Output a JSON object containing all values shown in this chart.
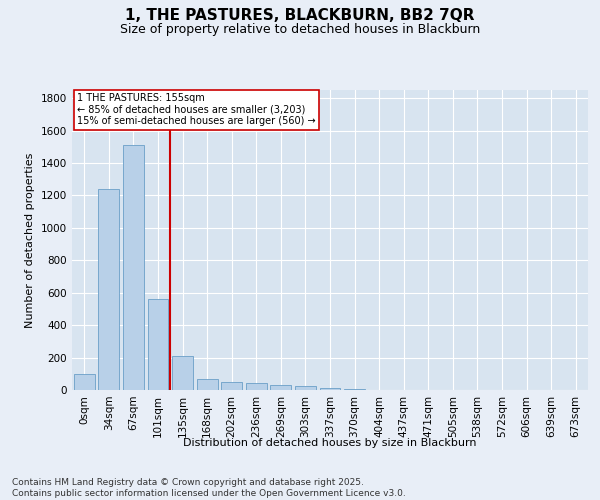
{
  "title": "1, THE PASTURES, BLACKBURN, BB2 7QR",
  "subtitle": "Size of property relative to detached houses in Blackburn",
  "xlabel": "Distribution of detached houses by size in Blackburn",
  "ylabel": "Number of detached properties",
  "bar_color": "#b8d0e8",
  "bar_edge_color": "#6a9fc8",
  "vline_color": "#cc0000",
  "vline_x_index": 4,
  "annotation_text": "1 THE PASTURES: 155sqm\n← 85% of detached houses are smaller (3,203)\n15% of semi-detached houses are larger (560) →",
  "annotation_box_color": "#cc0000",
  "categories": [
    "0sqm",
    "34sqm",
    "67sqm",
    "101sqm",
    "135sqm",
    "168sqm",
    "202sqm",
    "236sqm",
    "269sqm",
    "303sqm",
    "337sqm",
    "370sqm",
    "404sqm",
    "437sqm",
    "471sqm",
    "505sqm",
    "538sqm",
    "572sqm",
    "606sqm",
    "639sqm",
    "673sqm"
  ],
  "values": [
    100,
    1240,
    1510,
    560,
    210,
    65,
    50,
    45,
    30,
    25,
    15,
    5,
    0,
    0,
    0,
    0,
    0,
    0,
    0,
    0,
    0
  ],
  "ylim": [
    0,
    1850
  ],
  "yticks": [
    0,
    200,
    400,
    600,
    800,
    1000,
    1200,
    1400,
    1600,
    1800
  ],
  "background_color": "#e8eef7",
  "plot_bg_color": "#d8e4f0",
  "footer": "Contains HM Land Registry data © Crown copyright and database right 2025.\nContains public sector information licensed under the Open Government Licence v3.0.",
  "title_fontsize": 11,
  "subtitle_fontsize": 9,
  "footer_fontsize": 6.5,
  "axis_label_fontsize": 8,
  "tick_fontsize": 7.5,
  "annotation_fontsize": 7
}
